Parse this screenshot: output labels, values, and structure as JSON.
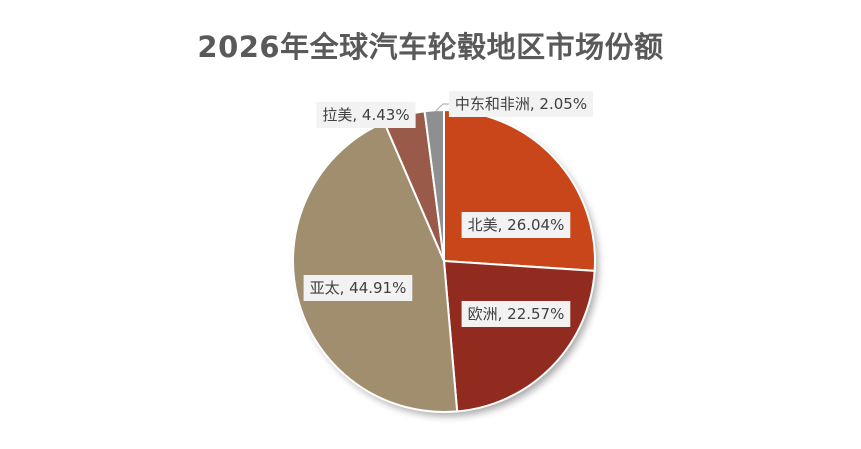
{
  "chart_data": {
    "type": "pie",
    "title": "2026年全球汽车轮毂地区市场份额",
    "slices": [
      {
        "label": "北美",
        "value": 26.04,
        "display": "北美, 26.04%",
        "color": "#c9461b"
      },
      {
        "label": "欧洲",
        "value": 22.57,
        "display": "欧洲, 22.57%",
        "color": "#922b1f"
      },
      {
        "label": "亚太",
        "value": 44.91,
        "display": "亚太, 44.91%",
        "color": "#a08e6e"
      },
      {
        "label": "拉美",
        "value": 4.43,
        "display": "拉美, 4.43%",
        "color": "#9a5a4a"
      },
      {
        "label": "中东和非洲",
        "value": 2.05,
        "display": "中东和非洲, 2.05%",
        "color": "#8f8f92"
      }
    ]
  }
}
